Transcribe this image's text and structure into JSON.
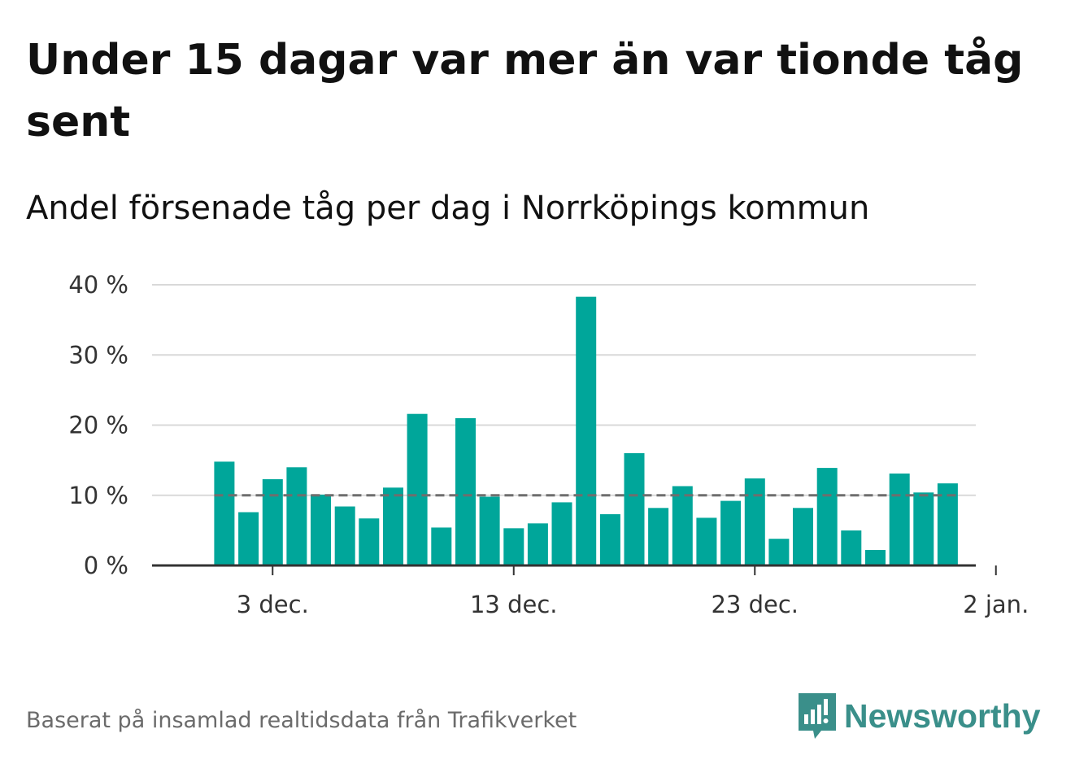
{
  "header": {
    "title": "Under 15 dagar var mer än var tionde tåg sent",
    "subtitle": "Andel försenade tåg per dag i Norrköpings kommun"
  },
  "footer": {
    "source": "Baserat på insamlad realtidsdata från Trafikverket",
    "brand": "Newsworthy",
    "brand_icon": "newsworthy-logo-icon"
  },
  "colors": {
    "bar": "#00a69a",
    "reference_line": "#6e6e6e",
    "grid": "#d9d9d9",
    "axis": "#333333",
    "brand": "#3a8f8a"
  },
  "chart_data": {
    "type": "bar",
    "x": [
      "2023-12-01",
      "2023-12-02",
      "2023-12-03",
      "2023-12-04",
      "2023-12-05",
      "2023-12-06",
      "2023-12-07",
      "2023-12-08",
      "2023-12-09",
      "2023-12-10",
      "2023-12-11",
      "2023-12-12",
      "2023-12-13",
      "2023-12-14",
      "2023-12-15",
      "2023-12-16",
      "2023-12-17",
      "2023-12-18",
      "2023-12-19",
      "2023-12-20",
      "2023-12-21",
      "2023-12-22",
      "2023-12-23",
      "2023-12-24",
      "2023-12-25",
      "2023-12-26",
      "2023-12-27",
      "2023-12-28",
      "2023-12-29",
      "2023-12-30",
      "2023-12-31"
    ],
    "values": [
      14.8,
      7.6,
      12.3,
      14.0,
      10.1,
      8.4,
      6.7,
      11.1,
      21.6,
      5.4,
      21.0,
      9.8,
      5.3,
      6.0,
      9.0,
      38.3,
      7.3,
      16.0,
      8.2,
      11.3,
      6.8,
      9.2,
      12.4,
      3.8,
      8.2,
      13.9,
      5.0,
      2.2,
      13.1,
      10.4,
      11.7
    ],
    "reference_line": 10,
    "ylim": [
      0,
      40
    ],
    "yticks": [
      0,
      10,
      20,
      30,
      40
    ],
    "ytick_labels": [
      "0 %",
      "10 %",
      "20 %",
      "30 %",
      "40 %"
    ],
    "xtick_dates": [
      "2023-12-03",
      "2023-12-13",
      "2023-12-23",
      "2024-01-02"
    ],
    "xtick_labels": [
      "3 dec.",
      "13 dec.",
      "23 dec.",
      "2 jan."
    ],
    "grid": true
  }
}
